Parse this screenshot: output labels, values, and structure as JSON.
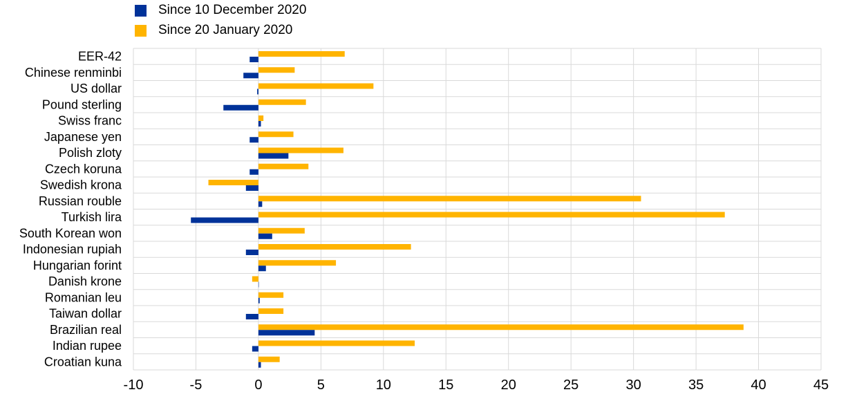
{
  "chart_data": {
    "type": "bar",
    "orientation": "horizontal",
    "title": "",
    "xlabel": "",
    "ylabel": "",
    "xlim": [
      -10,
      45
    ],
    "xticks": [
      -10,
      -5,
      0,
      5,
      10,
      15,
      20,
      25,
      30,
      35,
      40,
      45
    ],
    "grid": true,
    "legend_position": "top-left",
    "categories": [
      "EER-42",
      "Chinese renminbi",
      "US dollar",
      "Pound sterling",
      "Swiss franc",
      "Japanese yen",
      "Polish zloty",
      "Czech koruna",
      "Swedish krona",
      "Russian rouble",
      "Turkish lira",
      "South Korean won",
      "Indonesian rupiah",
      "Hungarian forint",
      "Danish krone",
      "Romanian leu",
      "Taiwan dollar",
      "Brazilian real",
      "Indian rupee",
      "Croatian kuna"
    ],
    "series": [
      {
        "name": "Since 10 December 2020",
        "color": "#003299",
        "values": [
          -0.7,
          -1.2,
          -0.1,
          -2.8,
          0.2,
          -0.7,
          2.4,
          -0.7,
          -1.0,
          0.3,
          -5.4,
          1.1,
          -1.0,
          0.6,
          0.0,
          0.1,
          -1.0,
          4.5,
          -0.5,
          0.2
        ]
      },
      {
        "name": "Since 20 January 2020",
        "color": "#FFB400",
        "values": [
          6.9,
          2.9,
          9.2,
          3.8,
          0.4,
          2.8,
          6.8,
          4.0,
          -4.0,
          30.6,
          37.3,
          3.7,
          12.2,
          6.2,
          -0.5,
          2.0,
          2.0,
          38.8,
          12.5,
          1.7
        ]
      }
    ]
  }
}
